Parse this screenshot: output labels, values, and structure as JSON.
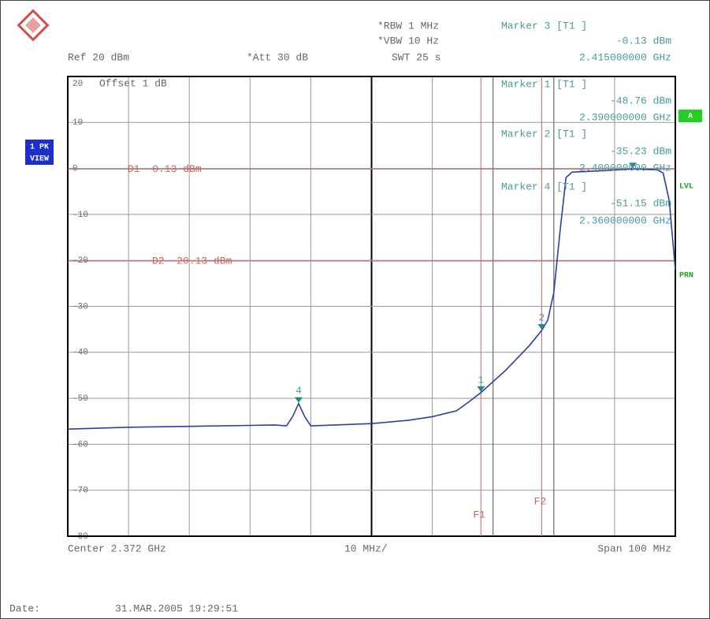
{
  "chart_data": {
    "type": "line",
    "header": {
      "rbw": "*RBW 1 MHz",
      "vbw": "*VBW 10 Hz",
      "swt": "SWT 25 s",
      "ref": "Ref 20 dBm",
      "att": "*Att 30 dB"
    },
    "offset": "Offset 1 dB",
    "side_labels": {
      "mode": "1 PK",
      "view": "VIEW",
      "trace": "A",
      "level": "LVL",
      "print": "PRN"
    },
    "footer": {
      "center": "Center 2.372 GHz",
      "div": "10 MHz/",
      "span": "Span 100 MHz",
      "date_label": "Date:",
      "date": "31.MAR.2005 19:29:51"
    },
    "xlim": [
      2.322,
      2.422
    ],
    "xticks": [
      2.322,
      2.332,
      2.342,
      2.352,
      2.362,
      2.372,
      2.382,
      2.392,
      2.402,
      2.412,
      2.422
    ],
    "ylim": [
      -80,
      20
    ],
    "yticks": [
      20,
      10,
      0,
      -10,
      -20,
      -30,
      -40,
      -50,
      -60,
      -70,
      -80
    ],
    "grid": true,
    "series": [
      {
        "name": "Trace 1",
        "color": "#2a3fa6",
        "x": [
          2.322,
          2.332,
          2.342,
          2.352,
          2.356,
          2.358,
          2.359,
          2.36,
          2.361,
          2.362,
          2.366,
          2.372,
          2.378,
          2.382,
          2.386,
          2.388,
          2.39,
          2.394,
          2.398,
          2.4,
          2.401,
          2.402,
          2.403,
          2.404,
          2.405,
          2.41,
          2.415,
          2.419,
          2.42,
          2.421,
          2.422
        ],
        "values": [
          -56.7,
          -56.3,
          -56.1,
          -55.9,
          -55.8,
          -56,
          -54,
          -51.15,
          -54,
          -56,
          -55.8,
          -55.5,
          -54.8,
          -54,
          -52.7,
          -50.8,
          -48.76,
          -44,
          -38.5,
          -35.23,
          -33,
          -27,
          -14,
          -2,
          -0.8,
          -0.5,
          -0.13,
          -0.3,
          -1,
          -7,
          -22
        ]
      }
    ],
    "markers": [
      {
        "name": "Marker 3 [T1 ]",
        "x": 2.415,
        "x_label": "2.415000000 GHz",
        "value": -0.13,
        "value_label": "-0.13 dBm"
      },
      {
        "name": "Marker 1 [T1 ]",
        "tag": "1",
        "x": 2.39,
        "x_label": "2.390000000 GHz",
        "value": -48.76,
        "value_label": "-48.76 dBm"
      },
      {
        "name": "Marker 2 [T1 ]",
        "tag": "2",
        "x": 2.4,
        "x_label": "2.400000000 GHz",
        "value": -35.23,
        "value_label": "-35.23 dBm"
      },
      {
        "name": "Marker 4 [T1 ]",
        "tag": "4",
        "x": 2.36,
        "x_label": "2.360000000 GHz",
        "value": -51.15,
        "value_label": "-51.15 dBm"
      }
    ],
    "display_lines": [
      {
        "label": "D1 -0.13 dBm",
        "value": -0.13
      },
      {
        "label": "D2 -20.13 dBm",
        "value": -20.13
      }
    ],
    "frequency_lines": [
      {
        "label": "F1",
        "value": 2.39
      },
      {
        "label": "F2",
        "value": 2.4
      }
    ],
    "limit_lines": [
      2.392,
      2.402
    ]
  }
}
